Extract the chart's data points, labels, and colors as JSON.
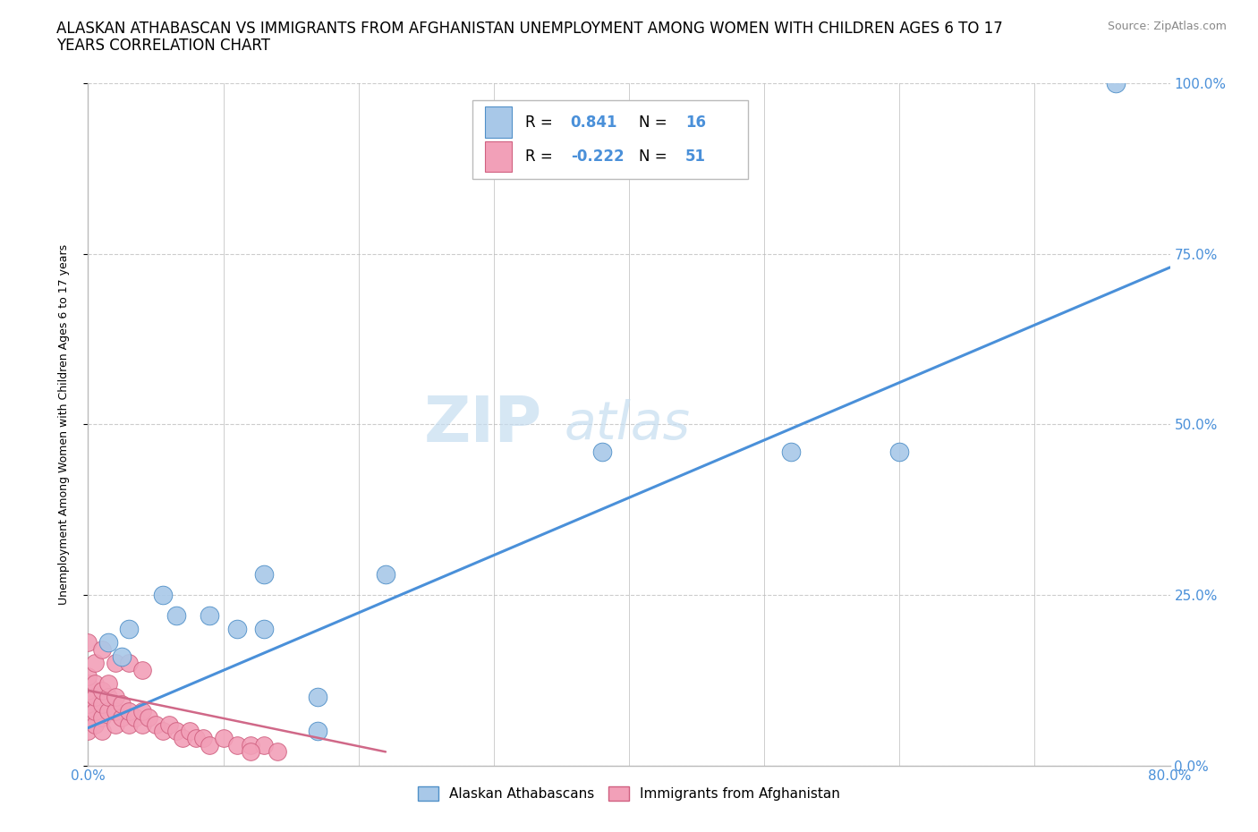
{
  "title_line1": "ALASKAN ATHABASCAN VS IMMIGRANTS FROM AFGHANISTAN UNEMPLOYMENT AMONG WOMEN WITH CHILDREN AGES 6 TO 17",
  "title_line2": "YEARS CORRELATION CHART",
  "source": "Source: ZipAtlas.com",
  "ylabel": "Unemployment Among Women with Children Ages 6 to 17 years",
  "xlim": [
    0.0,
    0.8
  ],
  "ylim": [
    0.0,
    1.0
  ],
  "ytick_vals": [
    0.0,
    0.25,
    0.5,
    0.75,
    1.0
  ],
  "ytick_labels": [
    "0.0%",
    "25.0%",
    "50.0%",
    "75.0%",
    "100.0%"
  ],
  "watermark_zip": "ZIP",
  "watermark_atlas": "atlas",
  "blue_color": "#a8c8e8",
  "pink_color": "#f2a0b8",
  "blue_edge_color": "#5090c8",
  "pink_edge_color": "#d06080",
  "blue_line_color": "#4a90d9",
  "pink_line_color": "#d06888",
  "axis_color": "#bbbbbb",
  "grid_color": "#cccccc",
  "blue_scatter": [
    [
      0.015,
      0.18
    ],
    [
      0.025,
      0.16
    ],
    [
      0.03,
      0.2
    ],
    [
      0.055,
      0.25
    ],
    [
      0.065,
      0.22
    ],
    [
      0.09,
      0.22
    ],
    [
      0.11,
      0.2
    ],
    [
      0.13,
      0.28
    ],
    [
      0.13,
      0.2
    ],
    [
      0.17,
      0.05
    ],
    [
      0.17,
      0.1
    ],
    [
      0.22,
      0.28
    ],
    [
      0.38,
      0.46
    ],
    [
      0.52,
      0.46
    ],
    [
      0.6,
      0.46
    ],
    [
      0.76,
      1.0
    ]
  ],
  "pink_scatter": [
    [
      0.0,
      0.05
    ],
    [
      0.0,
      0.07
    ],
    [
      0.0,
      0.08
    ],
    [
      0.0,
      0.09
    ],
    [
      0.0,
      0.1
    ],
    [
      0.0,
      0.11
    ],
    [
      0.0,
      0.12
    ],
    [
      0.0,
      0.13
    ],
    [
      0.005,
      0.06
    ],
    [
      0.005,
      0.08
    ],
    [
      0.005,
      0.1
    ],
    [
      0.005,
      0.12
    ],
    [
      0.01,
      0.07
    ],
    [
      0.01,
      0.09
    ],
    [
      0.01,
      0.11
    ],
    [
      0.01,
      0.05
    ],
    [
      0.015,
      0.08
    ],
    [
      0.015,
      0.1
    ],
    [
      0.015,
      0.12
    ],
    [
      0.02,
      0.06
    ],
    [
      0.02,
      0.08
    ],
    [
      0.02,
      0.1
    ],
    [
      0.025,
      0.07
    ],
    [
      0.025,
      0.09
    ],
    [
      0.03,
      0.06
    ],
    [
      0.03,
      0.08
    ],
    [
      0.035,
      0.07
    ],
    [
      0.04,
      0.06
    ],
    [
      0.04,
      0.08
    ],
    [
      0.045,
      0.07
    ],
    [
      0.05,
      0.06
    ],
    [
      0.055,
      0.05
    ],
    [
      0.06,
      0.06
    ],
    [
      0.065,
      0.05
    ],
    [
      0.07,
      0.04
    ],
    [
      0.075,
      0.05
    ],
    [
      0.08,
      0.04
    ],
    [
      0.085,
      0.04
    ],
    [
      0.09,
      0.03
    ],
    [
      0.1,
      0.04
    ],
    [
      0.11,
      0.03
    ],
    [
      0.12,
      0.03
    ],
    [
      0.13,
      0.03
    ],
    [
      0.14,
      0.02
    ],
    [
      0.0,
      0.18
    ],
    [
      0.005,
      0.15
    ],
    [
      0.01,
      0.17
    ],
    [
      0.02,
      0.15
    ],
    [
      0.03,
      0.15
    ],
    [
      0.04,
      0.14
    ],
    [
      0.12,
      0.02
    ]
  ],
  "blue_trend_x": [
    0.0,
    0.8
  ],
  "blue_trend_y": [
    0.055,
    0.73
  ],
  "pink_trend_x": [
    0.0,
    0.22
  ],
  "pink_trend_y": [
    0.11,
    0.02
  ],
  "title_fontsize": 12,
  "source_fontsize": 9,
  "ylabel_fontsize": 9,
  "tick_fontsize": 11,
  "watermark_fontsize_zip": 52,
  "watermark_fontsize_atlas": 42,
  "legend_fontsize": 12
}
